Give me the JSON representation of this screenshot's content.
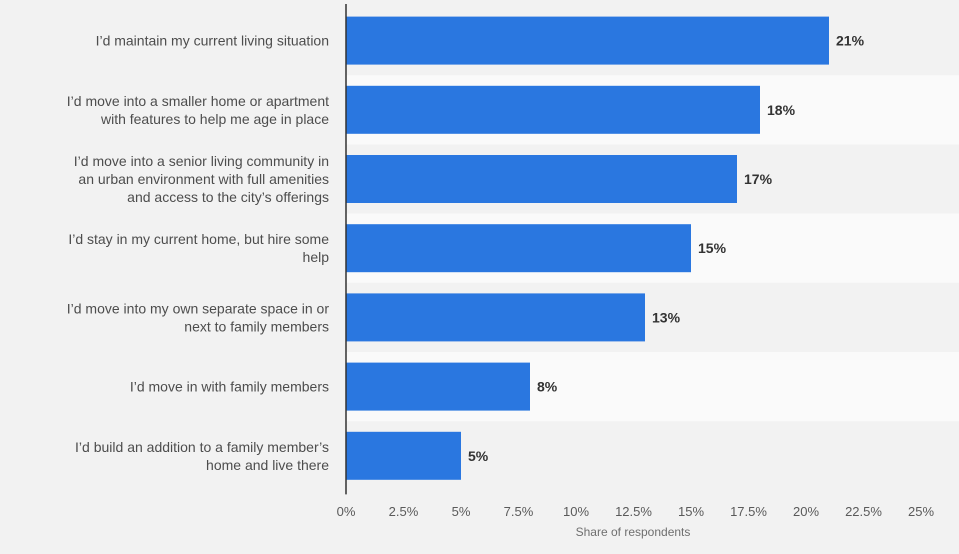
{
  "colors": {
    "background": "#f2f2f2",
    "band_alt": "#fafafa",
    "bar": "#2a77e0",
    "axis": "#333333"
  },
  "chart_data": {
    "type": "bar",
    "orientation": "horizontal",
    "categories": [
      "I’d maintain my current living situation",
      "I’d move into a smaller home or apartment with features to help me age in place",
      "I’d move into a senior living community in an urban environment with full amenities and access to the city’s offerings",
      "I’d stay in my current home, but hire some help",
      "I’d move into my own separate space in or next to family members",
      "I’d move in with family members",
      "I’d build an addition to a family member’s home and live there"
    ],
    "category_lines": [
      [
        "I’d maintain my current living situation"
      ],
      [
        "I’d move into a smaller home or apartment",
        "with features to help me age in place"
      ],
      [
        "I’d move into a senior living community in",
        "an urban environment with full amenities",
        "and access to the city’s offerings"
      ],
      [
        "I’d stay in my current home, but hire some",
        "help"
      ],
      [
        "I’d move into my own separate space in or",
        "next to family members"
      ],
      [
        "I’d move in with family members"
      ],
      [
        "I’d build an addition to a family member’s",
        "home and live there"
      ]
    ],
    "values": [
      21,
      18,
      17,
      15,
      13,
      8,
      5
    ],
    "data_labels": [
      "21%",
      "18%",
      "17%",
      "15%",
      "13%",
      "8%",
      "5%"
    ],
    "xlim": [
      0,
      25
    ],
    "xticks": [
      0,
      2.5,
      5,
      7.5,
      10,
      12.5,
      15,
      17.5,
      20,
      22.5,
      25
    ],
    "xtick_labels": [
      "0%",
      "2.5%",
      "5%",
      "7.5%",
      "10%",
      "12.5%",
      "15%",
      "17.5%",
      "20%",
      "22.5%",
      "25%"
    ],
    "xlabel": "Share of respondents",
    "ylabel": "",
    "title": "",
    "grid": false,
    "legend": "none"
  }
}
